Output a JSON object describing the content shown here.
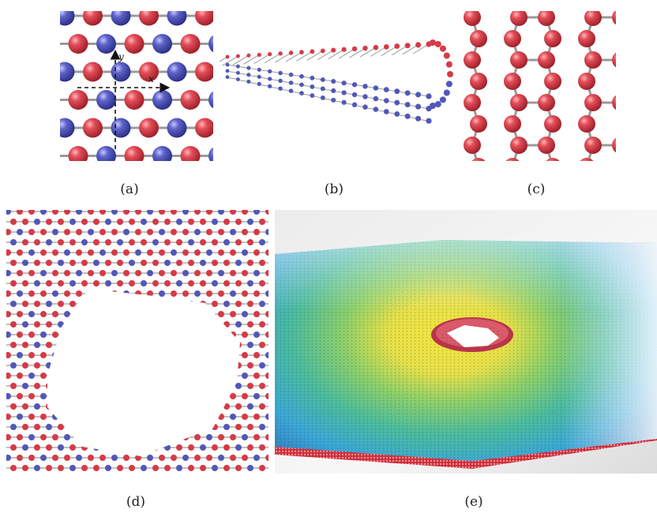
{
  "figure": {
    "panels": [
      {
        "id": "a",
        "label": "(a)",
        "axis_labels": {
          "x": "x",
          "y": "y"
        }
      },
      {
        "id": "b",
        "label": "(b)"
      },
      {
        "id": "c",
        "label": "(c)"
      },
      {
        "id": "d",
        "label": "(d)"
      },
      {
        "id": "e",
        "label": "(e)"
      }
    ],
    "colors": {
      "atom_red": "#d63a46",
      "atom_blue": "#5257b8",
      "bond_grey": "#9a9a9a",
      "strain_yellow": "#f2e24a",
      "strain_green": "#5fc27a",
      "strain_cyan": "#4fb5d8",
      "strain_blue": "#3a62b8"
    }
  }
}
